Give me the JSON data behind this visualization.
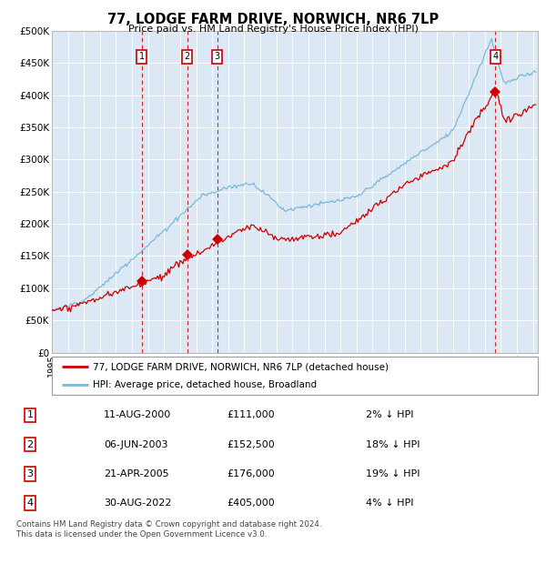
{
  "title": "77, LODGE FARM DRIVE, NORWICH, NR6 7LP",
  "subtitle": "Price paid vs. HM Land Registry's House Price Index (HPI)",
  "background_color": "#ffffff",
  "plot_bg_color": "#dce9f5",
  "hpi_line_color": "#7ab8d9",
  "price_line_color": "#cc0000",
  "marker_color": "#cc0000",
  "dashed_line_color": "#cc0000",
  "ylim": [
    0,
    500000
  ],
  "yticks": [
    0,
    50000,
    100000,
    150000,
    200000,
    250000,
    300000,
    350000,
    400000,
    450000,
    500000
  ],
  "ytick_labels": [
    "£0",
    "£50K",
    "£100K",
    "£150K",
    "£200K",
    "£250K",
    "£300K",
    "£350K",
    "£400K",
    "£450K",
    "£500K"
  ],
  "legend_line1": "77, LODGE FARM DRIVE, NORWICH, NR6 7LP (detached house)",
  "legend_line2": "HPI: Average price, detached house, Broadland",
  "sales": [
    {
      "label": "1",
      "date": "11-AUG-2000",
      "x": 2000.61,
      "price": 111000
    },
    {
      "label": "2",
      "date": "06-JUN-2003",
      "x": 2003.43,
      "price": 152500
    },
    {
      "label": "3",
      "date": "21-APR-2005",
      "x": 2005.3,
      "price": 176000
    },
    {
      "label": "4",
      "date": "30-AUG-2022",
      "x": 2022.66,
      "price": 405000
    }
  ],
  "footer": "Contains HM Land Registry data © Crown copyright and database right 2024.\nThis data is licensed under the Open Government Licence v3.0.",
  "table_rows": [
    [
      "1",
      "11-AUG-2000",
      "£111,000",
      "2% ↓ HPI"
    ],
    [
      "2",
      "06-JUN-2003",
      "£152,500",
      "18% ↓ HPI"
    ],
    [
      "3",
      "21-APR-2005",
      "£176,000",
      "19% ↓ HPI"
    ],
    [
      "4",
      "30-AUG-2022",
      "£405,000",
      "4% ↓ HPI"
    ]
  ]
}
